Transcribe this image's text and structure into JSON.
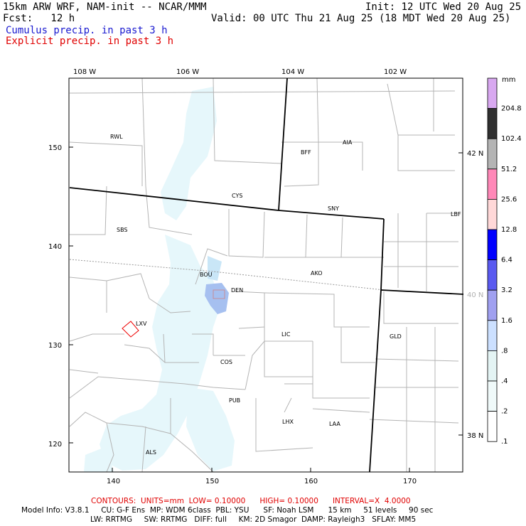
{
  "header": {
    "line1_left": "15km ARW WRF, NAM-init -- NCAR/MMM",
    "line1_right": "Init: 12 UTC Wed 20 Aug 25",
    "line2_left": "Fcst:   12 h",
    "line2_right": "Valid: 00 UTC Thu 21 Aug 25 (18 MDT Wed 20 Aug 25)",
    "legend_cumulus": "Cumulus precip. in past 3 h",
    "legend_explicit": "Explicit precip. in past 3 h"
  },
  "map": {
    "top_lon_labels": [
      "108 W",
      "106 W",
      "104 W",
      "102 W"
    ],
    "left_grid_labels": [
      "150",
      "140",
      "130",
      "120"
    ],
    "bottom_grid_labels": [
      "140",
      "150",
      "160",
      "170"
    ],
    "right_lat_labels": [
      "42 N",
      "40 N",
      "38 N"
    ],
    "stations": [
      "RWL",
      "BFF",
      "AIA",
      "CYS",
      "SNY",
      "LBF",
      "SBS",
      "BOU",
      "DEN",
      "AKO",
      "LXV",
      "LIC",
      "GLD",
      "COS",
      "PUB",
      "LHX",
      "LAA",
      "ALS"
    ]
  },
  "colorbar": {
    "unit": "mm",
    "levels": [
      "204.8",
      "102.4",
      "51.2",
      "25.6",
      "12.8",
      "6.4",
      "3.2",
      "1.6",
      ".8",
      ".4",
      ".2",
      ".1"
    ],
    "colors": [
      "#d8a8f0",
      "#303030",
      "#b4b4b4",
      "#ff88b8",
      "#ffd8d8",
      "#0000ff",
      "#5a5af0",
      "#a0a0f0",
      "#cce0ff",
      "#e4f4f4",
      "#f0fafa",
      "#ffffff"
    ]
  },
  "footer": {
    "contours": "CONTOURS:  UNITS=mm  LOW= 0.10000      HIGH= 0.10000      INTERVAL=X  4.0000",
    "model_info_1": "Model Info: V3.8.1     CU: G-F Ens  MP: WDM 6class  PBL: YSU      SF: Noah LSM      15 km     51 levels     90 sec",
    "model_info_2": "LW: RRTMG     SW: RRTMG   DIFF: full     KM: 2D Smagor  DAMP: Rayleigh3   SFLAY: MM5"
  }
}
